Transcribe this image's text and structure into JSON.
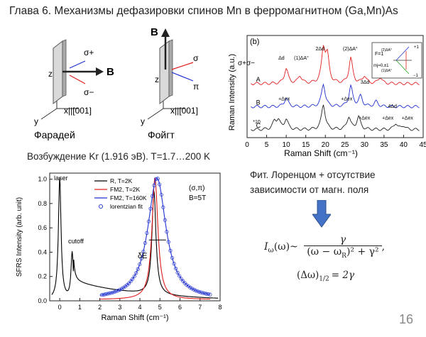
{
  "slide": {
    "title": "Глава 6. Механизмы дефазировки спинов Mn в ферромагнитном (Ga,Mn)As",
    "page_number": "16",
    "excitation": "Возбуждение Kr (1.916 эВ). T=1.7…200 K",
    "fit_note": "Фит. Лоренцом + отсутствие зависимости от магн. поля",
    "formula": {
      "lhs": "I",
      "lhs_sub": "ω",
      "lhs_arg": "(ω)~",
      "numerator": "γ",
      "denominator": "(ω − ω",
      "denominator_sub": "R",
      "denominator_rest": ")² + γ²",
      "trail": ","
    },
    "width_formula": {
      "lhs": "(Δω)",
      "sub": "1/2",
      "rhs": "= 2γ"
    },
    "arrow_color": "#4472c4"
  },
  "geometry_diagram": {
    "faraday_label": "Фарадей",
    "voigt_label": "Фойгт",
    "axis_z": "z",
    "axis_y": "y",
    "axis_x": "x||[001]",
    "field_B": "B",
    "sigma_plus": "σ+",
    "sigma_minus": "σ−",
    "sigma": "σ",
    "pi": "π"
  },
  "chart_data": [
    {
      "type": "line",
      "panel": "(b)",
      "xlabel": "Raman Shift (cm⁻¹)",
      "ylabel": "Raman Intensity (a.u.)",
      "xlim": [
        0,
        45
      ],
      "xticks": [
        0,
        5,
        10,
        15,
        20,
        25,
        30,
        35,
        40,
        45
      ],
      "polarization_label": "σ+σ−",
      "series": [
        {
          "name": "A",
          "color": "#e02020",
          "offset": 2.0,
          "peaks": [
            [
              10,
              0.6
            ],
            [
              13.5,
              0.3
            ],
            [
              19.5,
              1.3
            ],
            [
              20.5,
              1.0
            ],
            [
              26.5,
              1.0
            ],
            [
              30,
              0.3
            ],
            [
              34,
              0.25
            ]
          ]
        },
        {
          "name": "B",
          "color": "#2030d0",
          "offset": 1.1,
          "peaks": [
            [
              10,
              0.35
            ],
            [
              19.5,
              0.9
            ],
            [
              26.5,
              0.8
            ],
            [
              29,
              0.4
            ],
            [
              33,
              0.2
            ]
          ]
        },
        {
          "name": "C",
          "color": "#222222",
          "offset": 0.2,
          "peaks": [
            [
              7,
              0.3
            ],
            [
              8,
              0.35
            ],
            [
              10,
              0.4
            ],
            [
              19.5,
              1.0
            ],
            [
              26,
              0.5
            ],
            [
              28.5,
              0.5
            ],
            [
              38,
              0.25
            ],
            [
              40,
              0.15
            ]
          ]
        }
      ],
      "annotations": [
        "Δd",
        "(1)ΔA°",
        "2Δd",
        "(2)ΔA°",
        "3Δd",
        "4Δd",
        "+Δex",
        "+Δex",
        "+Δex",
        "+Δex",
        "+Δex",
        "*10"
      ],
      "inset": {
        "level_label": "F=1",
        "mj_label": "mj=0,±1",
        "plus_one": "+1",
        "minus_one": "−1",
        "delta1": "(1)ΔA°",
        "delta2": "(2)ΔA°"
      }
    },
    {
      "type": "line",
      "xlabel": "Raman Shift (cm⁻¹)",
      "ylabel": "SFRS Intensity (arb. unit)",
      "xlim": [
        -0.5,
        8
      ],
      "ylim": [
        0,
        1.05
      ],
      "xticks": [
        0,
        1,
        2,
        3,
        4,
        5,
        6,
        7,
        8
      ],
      "yticks": [
        0.0,
        0.2,
        0.4,
        0.6,
        0.8,
        1.0
      ],
      "annotations": {
        "laser": "laser",
        "cutoff": "cutoff",
        "delta_e": "δE",
        "polarization": "(σ,π)",
        "field": "B=5T"
      },
      "series": [
        {
          "name": "R, T=2K",
          "color": "#000000",
          "style": "line"
        },
        {
          "name": "FM2, T=2K",
          "color": "#e02020",
          "style": "line"
        },
        {
          "name": "FM2, T=160K",
          "color": "#2030d0",
          "style": "line"
        },
        {
          "name": "lorentzian fit",
          "color": "#2030d0",
          "style": "marker"
        }
      ]
    }
  ]
}
